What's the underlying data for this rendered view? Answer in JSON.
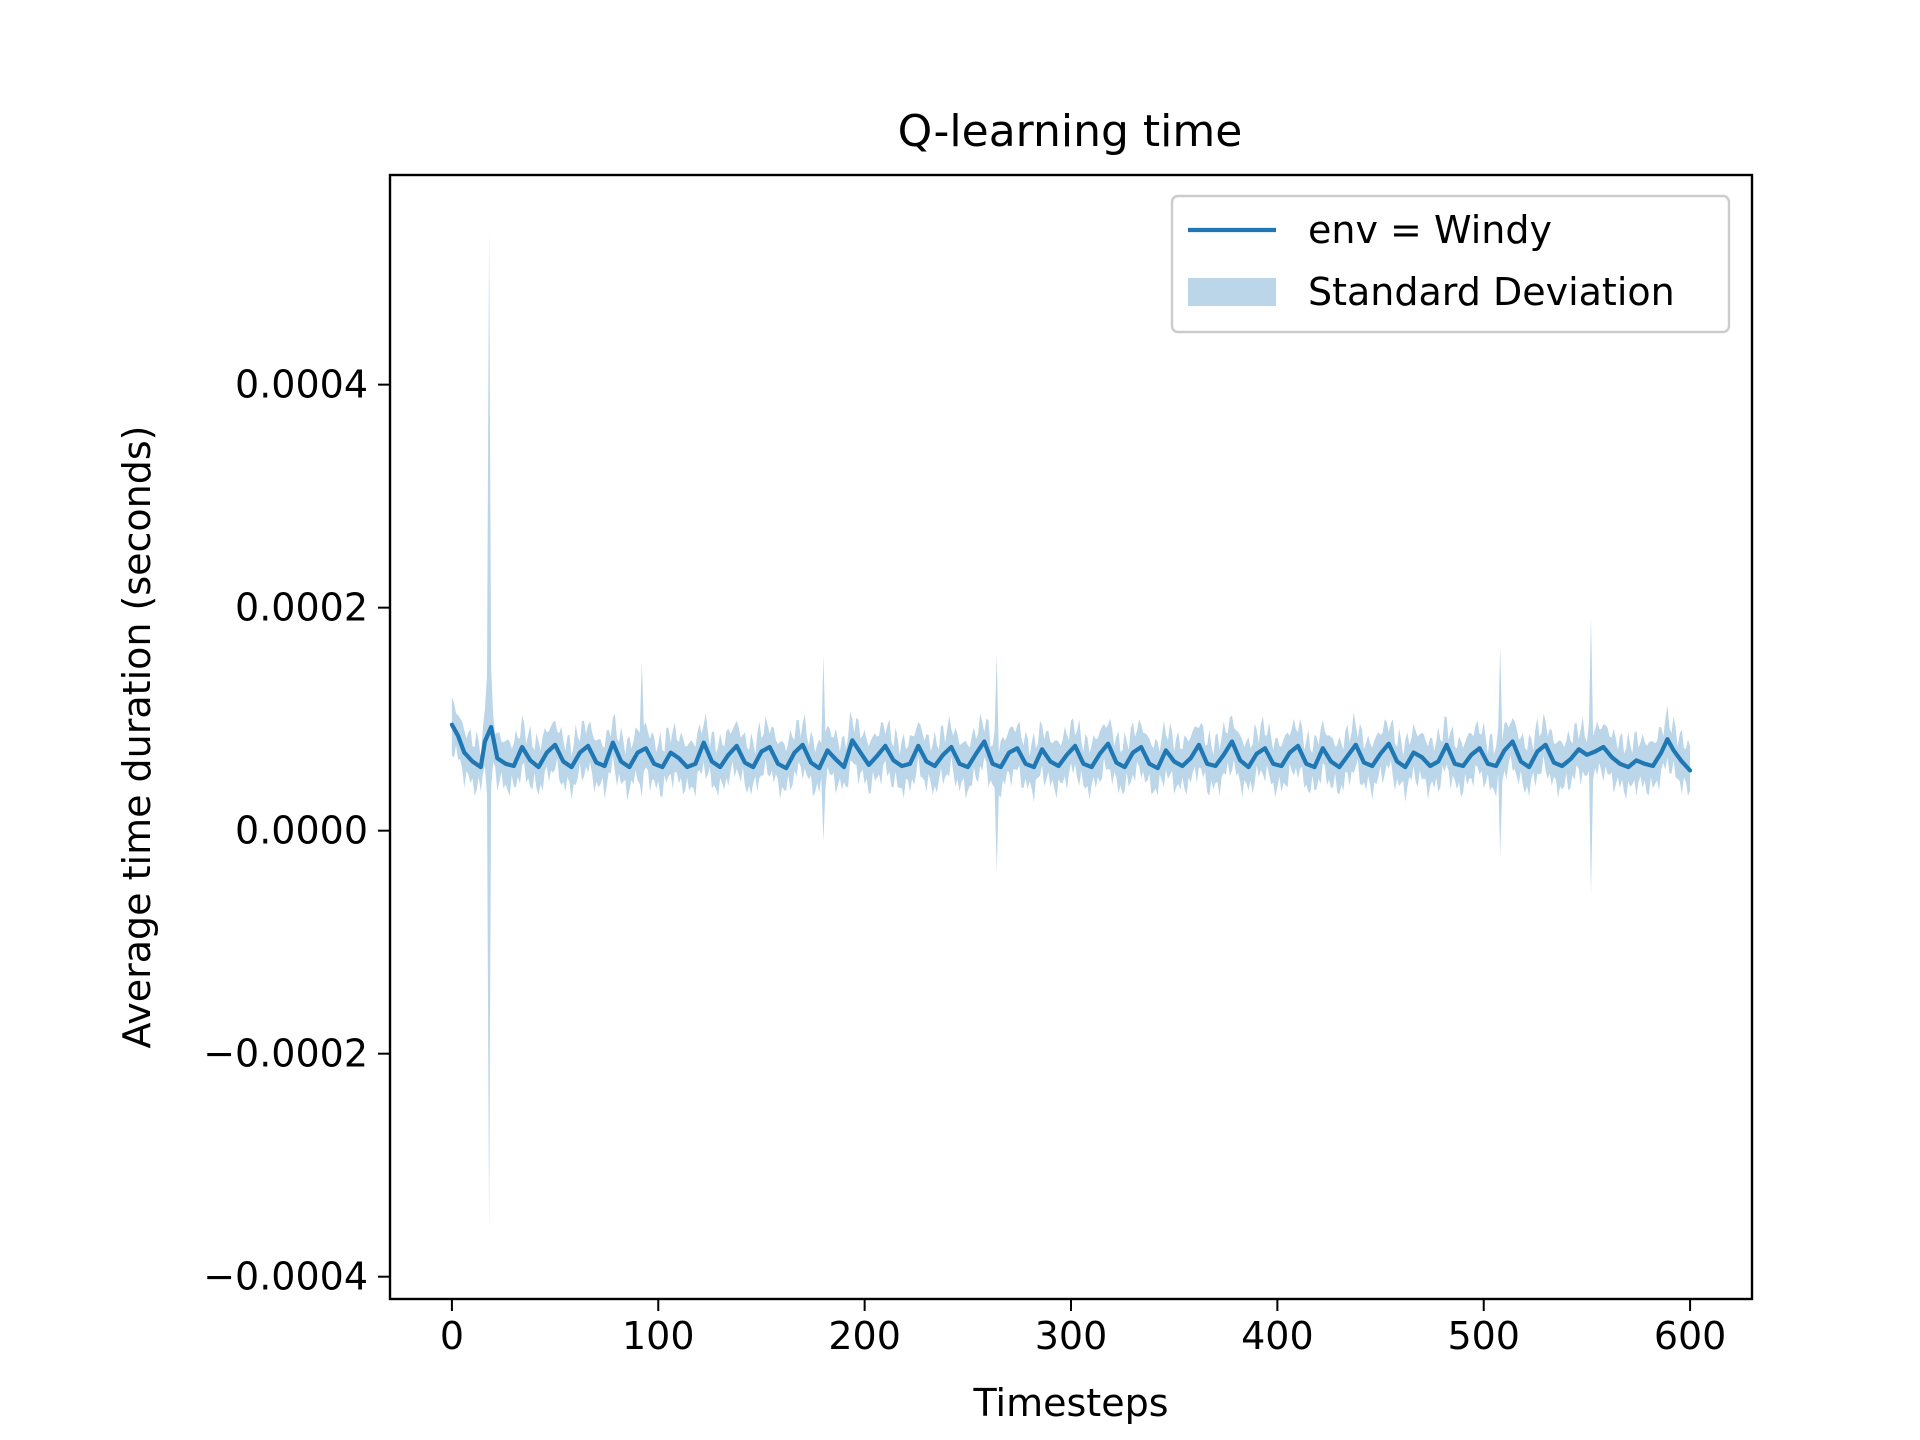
{
  "chart_data": {
    "type": "line",
    "title": "Q-learning time",
    "xlabel": "Timesteps",
    "ylabel": "Average time duration (seconds)",
    "xlim": [
      -30,
      630
    ],
    "ylim": [
      -0.00042,
      0.000588
    ],
    "x_ticks": [
      {
        "value": 0,
        "label": "0"
      },
      {
        "value": 100,
        "label": "100"
      },
      {
        "value": 200,
        "label": "200"
      },
      {
        "value": 300,
        "label": "300"
      },
      {
        "value": 400,
        "label": "400"
      },
      {
        "value": 500,
        "label": "500"
      },
      {
        "value": 600,
        "label": "600"
      }
    ],
    "y_ticks": [
      {
        "value": -0.0004,
        "label": "−0.0004"
      },
      {
        "value": -0.0002,
        "label": "−0.0002"
      },
      {
        "value": 0.0,
        "label": "0.0000"
      },
      {
        "value": 0.0002,
        "label": "0.0002"
      },
      {
        "value": 0.0004,
        "label": "0.0004"
      }
    ],
    "grid": false,
    "legend": {
      "placement": "upper right",
      "line_label": "env = Windy",
      "band_label": "Standard Deviation"
    },
    "colors": {
      "line": "#1f77b4",
      "band": "#1f77b4",
      "band_opacity": 0.3
    },
    "series": [
      {
        "name": "env = Windy",
        "x_start": 0,
        "x_end": 600,
        "points": [
          [
            0,
            9.5e-05
          ],
          [
            3,
            8.5e-05
          ],
          [
            6,
            7e-05
          ],
          [
            10,
            6.2e-05
          ],
          [
            14,
            5.7e-05
          ],
          [
            16,
            8e-05
          ],
          [
            19,
            9.3e-05
          ],
          [
            22,
            6.5e-05
          ],
          [
            26,
            6e-05
          ],
          [
            30,
            5.8e-05
          ],
          [
            34,
            7.5e-05
          ],
          [
            38,
            6.3e-05
          ],
          [
            42,
            5.7e-05
          ],
          [
            46,
            7e-05
          ],
          [
            50,
            7.7e-05
          ],
          [
            54,
            6.2e-05
          ],
          [
            58,
            5.7e-05
          ],
          [
            62,
            7e-05
          ],
          [
            66,
            7.6e-05
          ],
          [
            70,
            6.1e-05
          ],
          [
            74,
            5.8e-05
          ],
          [
            78,
            7.9e-05
          ],
          [
            82,
            6.2e-05
          ],
          [
            86,
            5.7e-05
          ],
          [
            90,
            7e-05
          ],
          [
            94,
            7.4e-05
          ],
          [
            98,
            6e-05
          ],
          [
            102,
            5.7e-05
          ],
          [
            106,
            7e-05
          ],
          [
            110,
            6.5e-05
          ],
          [
            114,
            5.7e-05
          ],
          [
            118,
            6e-05
          ],
          [
            122,
            7.9e-05
          ],
          [
            126,
            6.2e-05
          ],
          [
            130,
            5.7e-05
          ],
          [
            134,
            6.8e-05
          ],
          [
            138,
            7.6e-05
          ],
          [
            142,
            6.1e-05
          ],
          [
            146,
            5.7e-05
          ],
          [
            150,
            7.1e-05
          ],
          [
            154,
            7.5e-05
          ],
          [
            158,
            6e-05
          ],
          [
            162,
            5.6e-05
          ],
          [
            166,
            7e-05
          ],
          [
            170,
            7.7e-05
          ],
          [
            174,
            6.1e-05
          ],
          [
            178,
            5.6e-05
          ],
          [
            182,
            7.2e-05
          ],
          [
            186,
            6.4e-05
          ],
          [
            190,
            5.7e-05
          ],
          [
            194,
            8.1e-05
          ],
          [
            198,
            7e-05
          ],
          [
            202,
            5.9e-05
          ],
          [
            206,
            6.7e-05
          ],
          [
            210,
            7.6e-05
          ],
          [
            214,
            6.3e-05
          ],
          [
            218,
            5.8e-05
          ],
          [
            222,
            6e-05
          ],
          [
            226,
            7.6e-05
          ],
          [
            230,
            6.2e-05
          ],
          [
            234,
            5.8e-05
          ],
          [
            238,
            6.8e-05
          ],
          [
            242,
            7.5e-05
          ],
          [
            246,
            6e-05
          ],
          [
            250,
            5.7e-05
          ],
          [
            254,
            6.9e-05
          ],
          [
            258,
            8e-05
          ],
          [
            262,
            6e-05
          ],
          [
            266,
            5.7e-05
          ],
          [
            270,
            7e-05
          ],
          [
            274,
            7.4e-05
          ],
          [
            278,
            6e-05
          ],
          [
            282,
            5.7e-05
          ],
          [
            286,
            7.3e-05
          ],
          [
            290,
            6.2e-05
          ],
          [
            294,
            5.8e-05
          ],
          [
            298,
            6.8e-05
          ],
          [
            302,
            7.6e-05
          ],
          [
            306,
            6e-05
          ],
          [
            310,
            5.7e-05
          ],
          [
            314,
            6.9e-05
          ],
          [
            318,
            7.8e-05
          ],
          [
            322,
            6.1e-05
          ],
          [
            326,
            5.7e-05
          ],
          [
            330,
            7e-05
          ],
          [
            334,
            7.5e-05
          ],
          [
            338,
            6e-05
          ],
          [
            342,
            5.6e-05
          ],
          [
            346,
            7.2e-05
          ],
          [
            350,
            6.2e-05
          ],
          [
            354,
            5.8e-05
          ],
          [
            358,
            6.5e-05
          ],
          [
            362,
            7.7e-05
          ],
          [
            366,
            6e-05
          ],
          [
            370,
            5.8e-05
          ],
          [
            374,
            6.8e-05
          ],
          [
            378,
            8e-05
          ],
          [
            382,
            6.3e-05
          ],
          [
            386,
            5.7e-05
          ],
          [
            390,
            6.9e-05
          ],
          [
            394,
            7.4e-05
          ],
          [
            398,
            6e-05
          ],
          [
            402,
            5.8e-05
          ],
          [
            406,
            7e-05
          ],
          [
            410,
            7.6e-05
          ],
          [
            414,
            6e-05
          ],
          [
            418,
            5.7e-05
          ],
          [
            422,
            7.4e-05
          ],
          [
            426,
            6.2e-05
          ],
          [
            430,
            5.7e-05
          ],
          [
            434,
            6.7e-05
          ],
          [
            438,
            7.7e-05
          ],
          [
            442,
            6.1e-05
          ],
          [
            446,
            5.8e-05
          ],
          [
            450,
            6.9e-05
          ],
          [
            454,
            7.8e-05
          ],
          [
            458,
            6.2e-05
          ],
          [
            462,
            5.7e-05
          ],
          [
            466,
            7e-05
          ],
          [
            470,
            6.6e-05
          ],
          [
            474,
            5.8e-05
          ],
          [
            478,
            6.2e-05
          ],
          [
            482,
            7.7e-05
          ],
          [
            486,
            6e-05
          ],
          [
            490,
            5.8e-05
          ],
          [
            494,
            6.8e-05
          ],
          [
            498,
            7.4e-05
          ],
          [
            502,
            6e-05
          ],
          [
            506,
            5.8e-05
          ],
          [
            510,
            7.2e-05
          ],
          [
            514,
            8e-05
          ],
          [
            518,
            6.2e-05
          ],
          [
            522,
            5.7e-05
          ],
          [
            526,
            7.1e-05
          ],
          [
            530,
            7.7e-05
          ],
          [
            534,
            6.1e-05
          ],
          [
            538,
            5.8e-05
          ],
          [
            542,
            6.4e-05
          ],
          [
            546,
            7.3e-05
          ],
          [
            550,
            6.8e-05
          ],
          [
            554,
            7.1e-05
          ],
          [
            558,
            7.5e-05
          ],
          [
            562,
            6.6e-05
          ],
          [
            566,
            6e-05
          ],
          [
            570,
            5.7e-05
          ],
          [
            574,
            6.3e-05
          ],
          [
            578,
            6e-05
          ],
          [
            582,
            5.8e-05
          ],
          [
            586,
            7e-05
          ],
          [
            589,
            8.2e-05
          ],
          [
            592,
            7.2e-05
          ],
          [
            596,
            6.2e-05
          ],
          [
            600,
            5.4e-05
          ]
        ],
        "std_band": {
          "half_width_typical": 2e-05,
          "spikes": [
            {
              "x": 18,
              "upper": 0.00054,
              "lower": -0.00036
            },
            {
              "x": 92,
              "upper": 0.000152,
              "lower": 3e-05
            },
            {
              "x": 180,
              "upper": 0.000157,
              "lower": -1e-05
            },
            {
              "x": 264,
              "upper": 0.000158,
              "lower": -3.7e-05
            },
            {
              "x": 508,
              "upper": 0.000166,
              "lower": -2.4e-05
            },
            {
              "x": 552,
              "upper": 0.000192,
              "lower": -5.8e-05
            }
          ]
        }
      }
    ]
  }
}
